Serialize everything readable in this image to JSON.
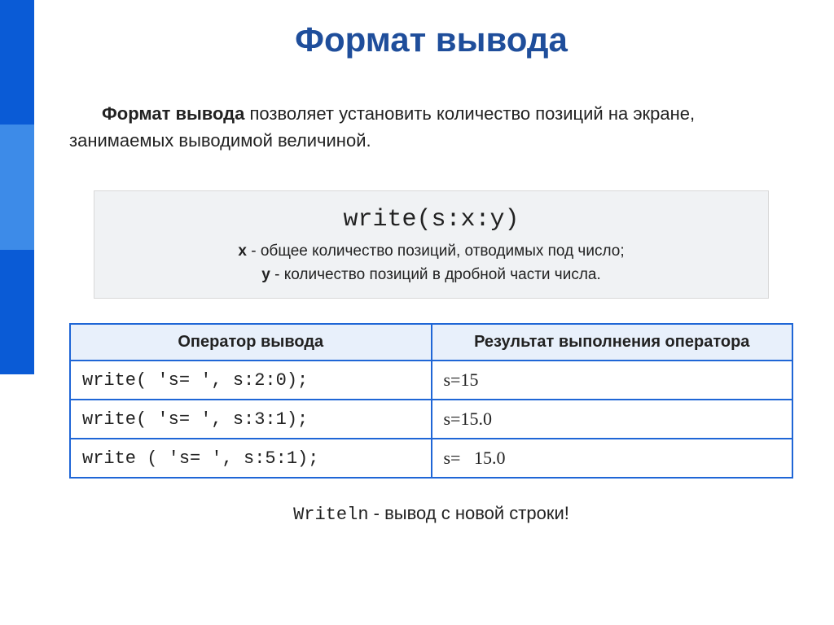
{
  "colors": {
    "title": "#1f4e9b",
    "stripe1": "#0a5bd6",
    "stripe2": "#3d8be8",
    "stripe3": "#0a5bd6",
    "table_border": "#1f66d6",
    "header_bg": "#e8f0fb",
    "codebox_bg": "#f0f2f4",
    "codebox_border": "#d8d8d8",
    "text": "#222222"
  },
  "title": "Формат вывода",
  "intro": {
    "bold": "Формат вывода",
    "rest": " позволяет установить количество позиций на экране, занимаемых выводимой величиной."
  },
  "codebox": {
    "code": "write(s:x:y)",
    "line1_bold": "x",
    "line1_rest": " - общее количество позиций, отводимых под число;",
    "line2_bold": "y",
    "line2_rest": " -  количество позиций в дробной части числа."
  },
  "table": {
    "headers": [
      "Оператор вывода",
      "Результат выполнения оператора"
    ],
    "rows": [
      {
        "op": "write( 's= ', s:2:0);",
        "res": "s=15"
      },
      {
        "op": "write( 's= ', s:3:1);",
        "res": "s=15.0"
      },
      {
        "op": "write ( 's= ', s:5:1);",
        "res": "s=   15.0"
      }
    ]
  },
  "footer": {
    "mono": "Writeln",
    "rest": "  -  вывод с новой строки!"
  }
}
